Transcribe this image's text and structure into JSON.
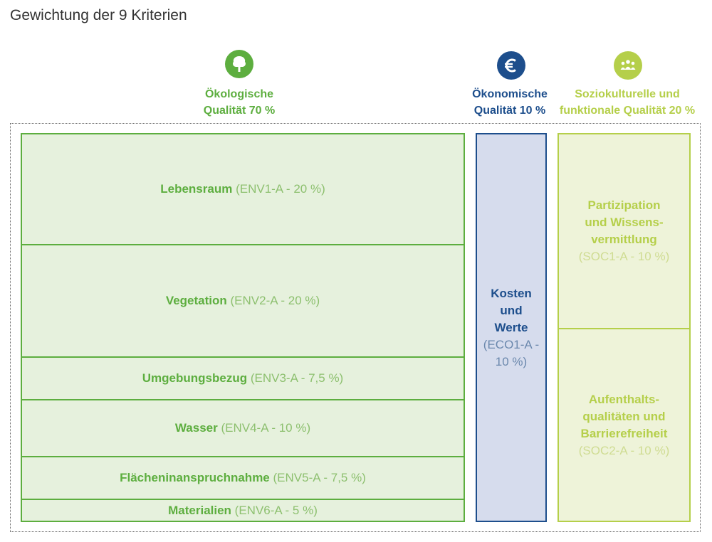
{
  "title": "Gewichtung der 9 Kriterien",
  "colors": {
    "environment": "#5dae3f",
    "economy": "#1d4e8c",
    "social": "#b5cf4a"
  },
  "categories": [
    {
      "icon": "tree-icon",
      "line1": "Ökologische",
      "line2": "Qualität 70 %"
    },
    {
      "icon": "euro-icon",
      "line1": "Ökonomische",
      "line2": "Qualität 10 %"
    },
    {
      "icon": "people-icon",
      "line1": "Soziokulturelle und",
      "line2": "funktionale Qualität 20 %"
    }
  ],
  "environment": [
    {
      "name": "Lebensraum",
      "code": "(ENV1-A - 20 %)",
      "weight": 20
    },
    {
      "name": "Vegetation",
      "code": "(ENV2-A - 20 %)",
      "weight": 20
    },
    {
      "name": "Umgebungsbezug",
      "code": "(ENV3-A - 7,5 %)",
      "weight": 7.5
    },
    {
      "name": "Wasser",
      "code": "(ENV4-A - 10 %)",
      "weight": 10
    },
    {
      "name": "Flächeninanspruchnahme",
      "code": "(ENV5-A - 7,5 %)",
      "weight": 7.5
    },
    {
      "name": "Materialien",
      "code": "(ENV6-A - 5 %)",
      "weight": 5
    }
  ],
  "economy": [
    {
      "name_lines": [
        "Kosten",
        "und",
        "Werte"
      ],
      "code_lines": [
        "(ECO1-A -",
        "10 %)"
      ],
      "weight": 10
    }
  ],
  "social": [
    {
      "name_lines": [
        "Partizipation",
        "und Wissens-",
        "vermittlung"
      ],
      "code": "(SOC1-A - 10 %)",
      "weight": 10
    },
    {
      "name_lines": [
        "Aufenthalts-",
        "qualitäten und",
        "Barrierefreiheit"
      ],
      "code": "(SOC2-A - 10 %)",
      "weight": 10
    }
  ]
}
